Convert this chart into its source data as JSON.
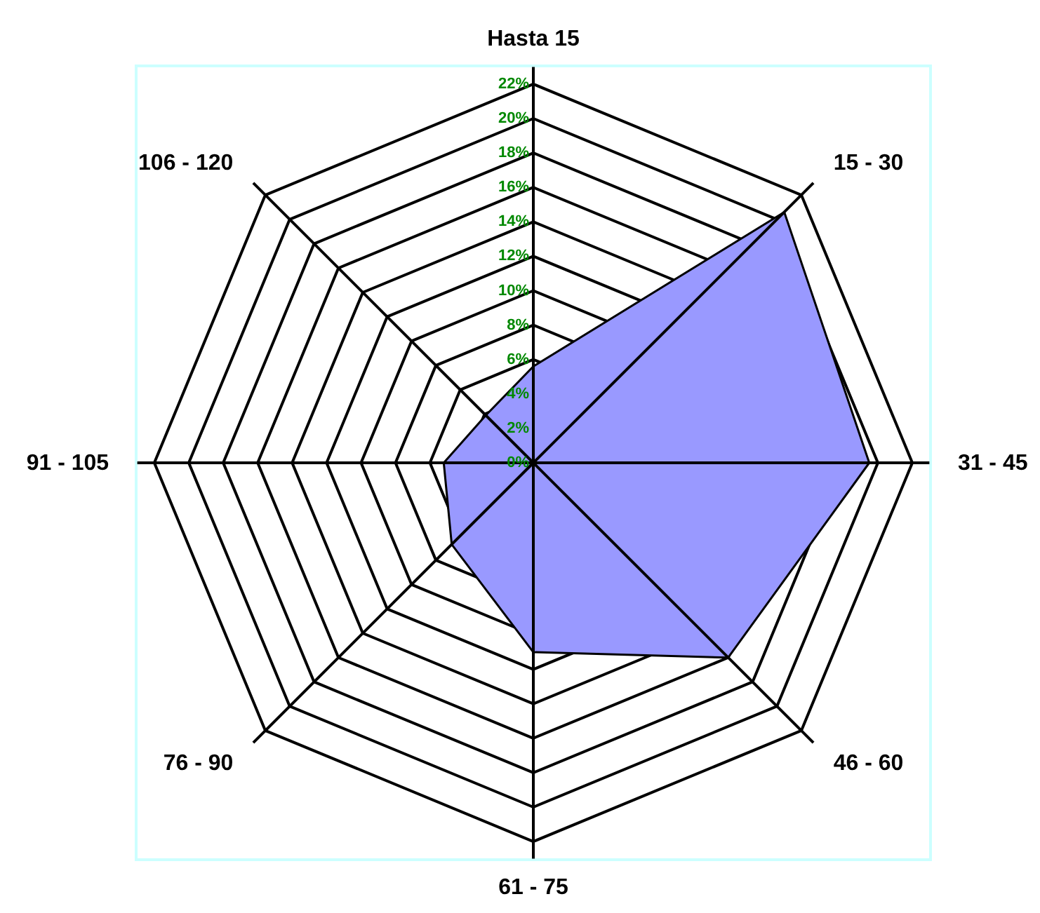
{
  "chart_data": {
    "type": "radar",
    "categories": [
      "Hasta 15",
      "15 - 30",
      "31 - 45",
      "46 - 60",
      "61 - 75",
      "76 - 90",
      "91 - 105",
      "106 - 120"
    ],
    "series": [
      {
        "color": "#9999ff",
        "values": [
          5.6,
          20.6,
          19.5,
          16.0,
          11.0,
          6.7,
          5.2,
          3.9
        ]
      }
    ],
    "ylim": [
      0,
      22
    ],
    "yticks": [
      {
        "value": 0,
        "label": "0%"
      },
      {
        "value": 2,
        "label": "2%"
      },
      {
        "value": 4,
        "label": "4%"
      },
      {
        "value": 6,
        "label": "6%"
      },
      {
        "value": 8,
        "label": "8%"
      },
      {
        "value": 10,
        "label": "10%"
      },
      {
        "value": 12,
        "label": "12%"
      },
      {
        "value": 14,
        "label": "14%"
      },
      {
        "value": 16,
        "label": "16%"
      },
      {
        "value": 18,
        "label": "18%"
      },
      {
        "value": 20,
        "label": "20%"
      },
      {
        "value": 22,
        "label": "22%"
      }
    ]
  }
}
